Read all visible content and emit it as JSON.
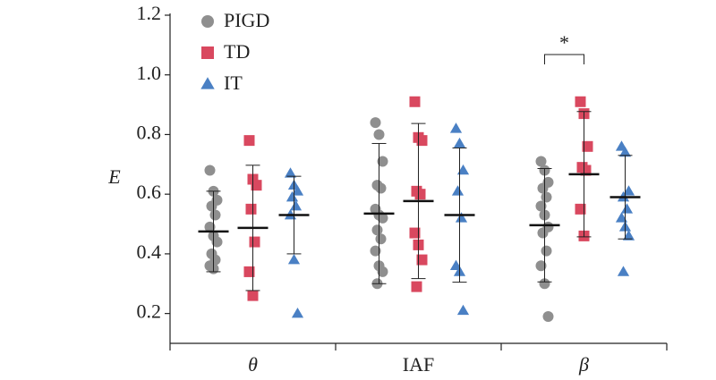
{
  "chart_data": {
    "type": "strip",
    "y_label": "E",
    "categories": [
      "θ",
      "IAF",
      "β"
    ],
    "italic_categories": [
      "θ",
      "β"
    ],
    "ylim": [
      0.1,
      1.2
    ],
    "yticks": [
      0.2,
      0.4,
      0.6,
      0.8,
      {
        "value": 1,
        "label": "1.0"
      },
      1.2
    ],
    "annotation": "*",
    "series": [
      {
        "name": "PIGD",
        "color": "#8f8f8f",
        "marker": "circle",
        "points": [
          [
            0.68,
            0.61,
            0.58,
            0.56,
            0.53,
            0.49,
            0.46,
            0.44,
            0.4,
            0.38,
            0.36,
            0.35
          ],
          [
            0.84,
            0.8,
            0.71,
            0.63,
            0.62,
            0.55,
            0.53,
            0.52,
            0.48,
            0.45,
            0.41,
            0.36,
            0.34,
            0.3
          ],
          [
            0.71,
            0.68,
            0.64,
            0.62,
            0.59,
            0.56,
            0.53,
            0.49,
            0.47,
            0.41,
            0.36,
            0.3,
            0.19
          ]
        ],
        "means": [
          0.475,
          0.535,
          0.496
        ],
        "errors": [
          0.135,
          0.235,
          0.19
        ]
      },
      {
        "name": "TD",
        "color": "#d9485f",
        "marker": "square",
        "points": [
          [
            0.78,
            0.65,
            0.63,
            0.55,
            0.44,
            0.34,
            0.26
          ],
          [
            0.91,
            0.79,
            0.78,
            0.61,
            0.6,
            0.47,
            0.43,
            0.38,
            0.29
          ],
          [
            0.91,
            0.87,
            0.76,
            0.69,
            0.68,
            0.55,
            0.46
          ]
        ],
        "means": [
          0.487,
          0.577,
          0.667
        ],
        "errors": [
          0.21,
          0.26,
          0.21
        ]
      },
      {
        "name": "IT",
        "color": "#4a80c4",
        "marker": "triangle",
        "points": [
          [
            0.67,
            0.63,
            0.61,
            0.59,
            0.56,
            0.53,
            0.38,
            0.2
          ],
          [
            0.82,
            0.77,
            0.68,
            0.61,
            0.52,
            0.36,
            0.34,
            0.21
          ],
          [
            0.76,
            0.74,
            0.61,
            0.59,
            0.55,
            0.52,
            0.49,
            0.46,
            0.34
          ]
        ],
        "means": [
          0.53,
          0.53,
          0.59
        ],
        "errors": [
          0.13,
          0.225,
          0.14
        ]
      }
    ]
  }
}
